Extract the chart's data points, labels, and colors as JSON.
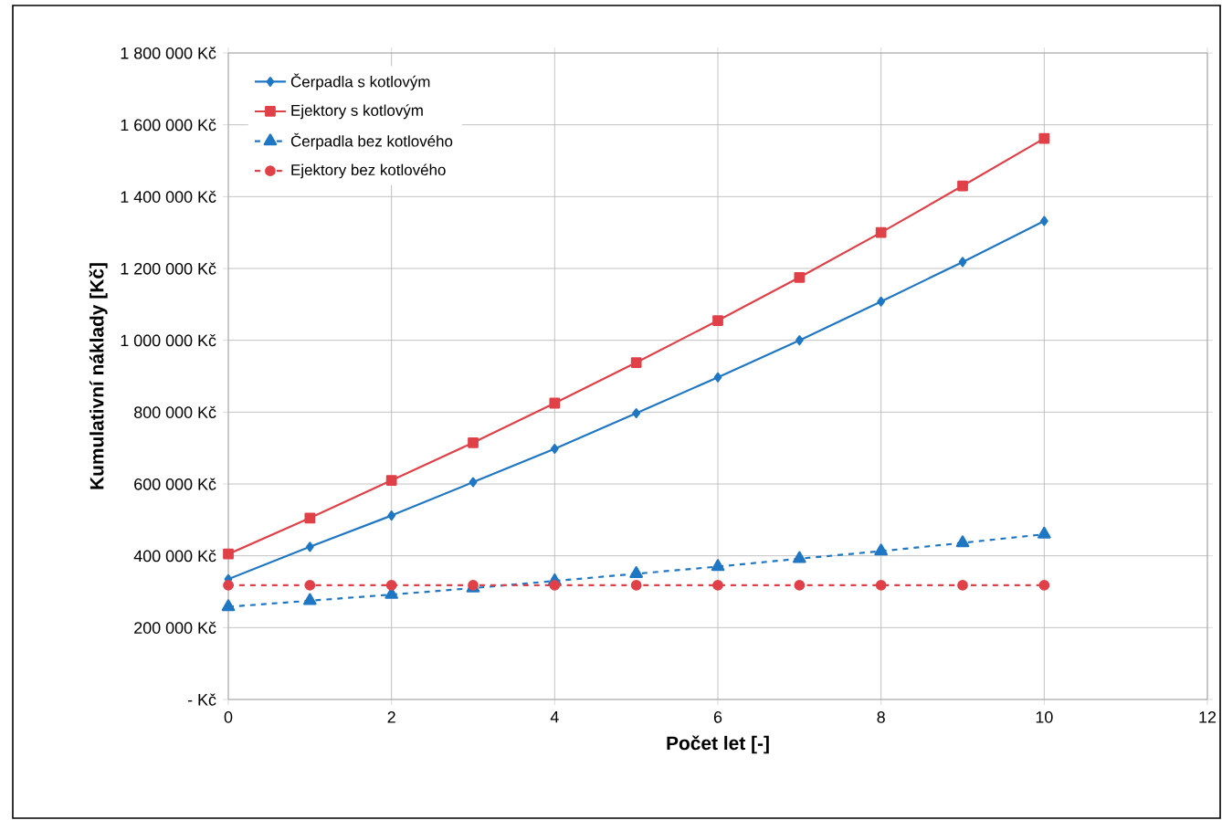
{
  "chart_data": {
    "type": "line",
    "xlabel": "Počet let [-]",
    "ylabel": "Kumulativní náklady [Kč]",
    "x": [
      0,
      1,
      2,
      3,
      4,
      5,
      6,
      7,
      8,
      9,
      10
    ],
    "series": [
      {
        "name": "Čerpadla s kotlovým",
        "color": "#1f77c4",
        "marker": "diamond",
        "line_style": "solid",
        "values": [
          335000,
          425000,
          512000,
          605000,
          698000,
          797000,
          897000,
          1000000,
          1108000,
          1218000,
          1332000
        ]
      },
      {
        "name": "Ejektory s kotlovým",
        "color": "#e04048",
        "marker": "square",
        "line_style": "solid",
        "values": [
          405000,
          505000,
          610000,
          715000,
          825000,
          938000,
          1055000,
          1175000,
          1300000,
          1430000,
          1562000
        ]
      },
      {
        "name": "Čerpadla bez kotlového",
        "color": "#1f77c4",
        "marker": "triangle",
        "line_style": "dashed",
        "values": [
          258000,
          275000,
          292000,
          310000,
          330000,
          350000,
          370000,
          392000,
          413000,
          436000,
          460000
        ]
      },
      {
        "name": "Ejektory bez kotlového",
        "color": "#e04048",
        "marker": "circle",
        "line_style": "dashed",
        "values": [
          318000,
          318000,
          318000,
          318000,
          318000,
          318000,
          318000,
          318000,
          318000,
          318000,
          318000
        ]
      }
    ],
    "xlim": [
      0,
      12
    ],
    "xticks": [
      0,
      2,
      4,
      6,
      8,
      10,
      12
    ],
    "ylim": [
      0,
      1800000
    ],
    "yticks": [
      {
        "value": 0,
        "label": "-  Kč"
      },
      {
        "value": 200000,
        "label": "200 000 Kč"
      },
      {
        "value": 400000,
        "label": "400 000 Kč"
      },
      {
        "value": 600000,
        "label": "600 000 Kč"
      },
      {
        "value": 800000,
        "label": "800 000 Kč"
      },
      {
        "value": 1000000,
        "label": "1 000 000 Kč"
      },
      {
        "value": 1200000,
        "label": "1 200 000 Kč"
      },
      {
        "value": 1400000,
        "label": "1 400 000 Kč"
      },
      {
        "value": 1600000,
        "label": "1 600 000 Kč"
      },
      {
        "value": 1800000,
        "label": "1 800 000 Kč"
      }
    ],
    "grid": true,
    "legend": "top left"
  }
}
